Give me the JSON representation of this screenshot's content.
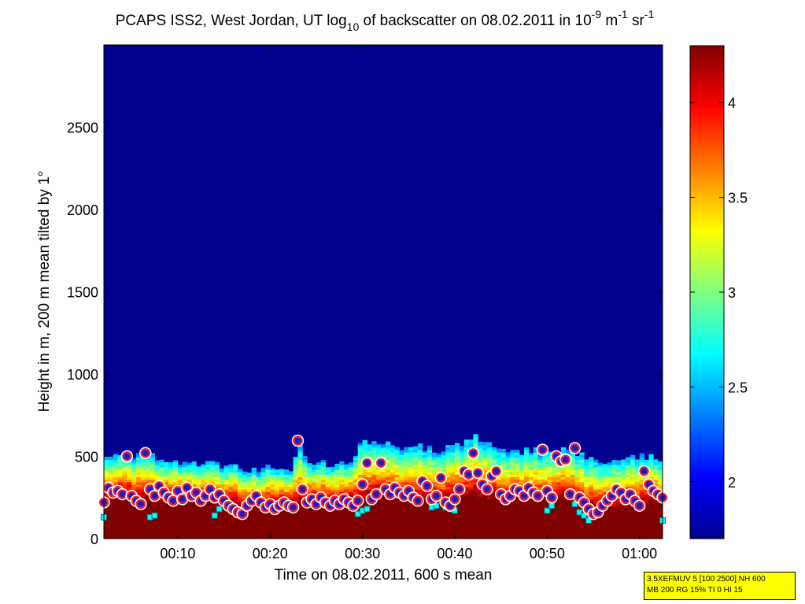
{
  "chart_data": {
    "type": "heatmap",
    "title": {
      "prefix": "PCAPS ISS2, West Jordan, UT log",
      "log_base": "10",
      "middle": " of backscatter on 08.02.2011 in 10",
      "exp1": "-9",
      "unit1": " m",
      "exp2": "-1",
      "unit2": " sr",
      "exp3": "-1"
    },
    "xlabel": "Time on 08.02.2011, 600 s mean",
    "ylabel": "Height in m, 200 m mean tilted by 1°",
    "x_range_minutes": [
      2,
      62.5
    ],
    "x_ticks": [
      {
        "value": 10,
        "label": "00:10"
      },
      {
        "value": 20,
        "label": "00:20"
      },
      {
        "value": 30,
        "label": "00:30"
      },
      {
        "value": 40,
        "label": "00:40"
      },
      {
        "value": 50,
        "label": "00:50"
      },
      {
        "value": 60,
        "label": "01:00"
      }
    ],
    "ylim": [
      0,
      3000
    ],
    "y_ticks": [
      0,
      500,
      1000,
      1500,
      2000,
      2500
    ],
    "colorbar": {
      "range": [
        1.7,
        4.3
      ],
      "ticks": [
        2,
        2.5,
        3,
        3.5,
        4
      ],
      "tick_labels": [
        "2",
        "2.5",
        "3",
        "3.5",
        "4"
      ],
      "colormap": "jet"
    },
    "background_value": 1.7,
    "surface_value": 4.3,
    "aerosol_layer_top_m": [
      [
        2,
        500
      ],
      [
        4,
        500
      ],
      [
        6,
        520
      ],
      [
        8,
        480
      ],
      [
        10,
        470
      ],
      [
        12,
        460
      ],
      [
        14,
        460
      ],
      [
        16,
        430
      ],
      [
        18,
        420
      ],
      [
        20,
        430
      ],
      [
        22,
        420
      ],
      [
        23,
        560
      ],
      [
        24,
        440
      ],
      [
        26,
        460
      ],
      [
        28,
        440
      ],
      [
        30,
        600
      ],
      [
        32,
        580
      ],
      [
        34,
        560
      ],
      [
        36,
        560
      ],
      [
        38,
        540
      ],
      [
        40,
        570
      ],
      [
        42,
        620
      ],
      [
        44,
        560
      ],
      [
        46,
        520
      ],
      [
        48,
        540
      ],
      [
        50,
        520
      ],
      [
        52,
        560
      ],
      [
        54,
        480
      ],
      [
        56,
        470
      ],
      [
        58,
        480
      ],
      [
        60,
        500
      ],
      [
        62.5,
        490
      ]
    ],
    "dense_layer_top_m": [
      [
        2,
        240
      ],
      [
        4,
        260
      ],
      [
        6,
        250
      ],
      [
        8,
        230
      ],
      [
        10,
        240
      ],
      [
        12,
        230
      ],
      [
        14,
        220
      ],
      [
        16,
        200
      ],
      [
        18,
        190
      ],
      [
        20,
        200
      ],
      [
        22,
        200
      ],
      [
        24,
        210
      ],
      [
        26,
        220
      ],
      [
        28,
        220
      ],
      [
        30,
        230
      ],
      [
        32,
        260
      ],
      [
        34,
        240
      ],
      [
        36,
        230
      ],
      [
        38,
        220
      ],
      [
        40,
        230
      ],
      [
        42,
        260
      ],
      [
        44,
        240
      ],
      [
        46,
        230
      ],
      [
        48,
        220
      ],
      [
        50,
        230
      ],
      [
        52,
        240
      ],
      [
        54,
        180
      ],
      [
        56,
        170
      ],
      [
        58,
        190
      ],
      [
        60,
        200
      ],
      [
        62.5,
        210
      ]
    ],
    "series": [
      {
        "marker": "circle-red-blue",
        "points": [
          [
            2.0,
            220
          ],
          [
            2.5,
            310
          ],
          [
            3.0,
            280
          ],
          [
            3.5,
            290
          ],
          [
            4.0,
            270
          ],
          [
            4.5,
            500
          ],
          [
            5.0,
            260
          ],
          [
            5.5,
            230
          ],
          [
            6.0,
            210
          ],
          [
            6.5,
            520
          ],
          [
            7.0,
            300
          ],
          [
            7.5,
            260
          ],
          [
            8.0,
            320
          ],
          [
            8.5,
            280
          ],
          [
            9.0,
            250
          ],
          [
            9.5,
            230
          ],
          [
            10.0,
            290
          ],
          [
            10.5,
            240
          ],
          [
            11.0,
            310
          ],
          [
            11.5,
            260
          ],
          [
            12.0,
            280
          ],
          [
            12.5,
            230
          ],
          [
            13.0,
            260
          ],
          [
            13.5,
            300
          ],
          [
            14.0,
            250
          ],
          [
            14.5,
            270
          ],
          [
            15.0,
            230
          ],
          [
            15.5,
            200
          ],
          [
            16.0,
            180
          ],
          [
            16.5,
            160
          ],
          [
            17.0,
            150
          ],
          [
            17.5,
            200
          ],
          [
            18.0,
            230
          ],
          [
            18.5,
            260
          ],
          [
            19.0,
            220
          ],
          [
            19.5,
            190
          ],
          [
            20.0,
            210
          ],
          [
            20.5,
            180
          ],
          [
            21.0,
            200
          ],
          [
            21.5,
            220
          ],
          [
            22.0,
            200
          ],
          [
            22.5,
            190
          ],
          [
            23.0,
            595
          ],
          [
            23.5,
            300
          ],
          [
            24.0,
            220
          ],
          [
            24.5,
            240
          ],
          [
            25.0,
            210
          ],
          [
            25.5,
            250
          ],
          [
            26.0,
            220
          ],
          [
            26.5,
            200
          ],
          [
            27.0,
            230
          ],
          [
            27.5,
            210
          ],
          [
            28.0,
            240
          ],
          [
            28.5,
            220
          ],
          [
            29.0,
            200
          ],
          [
            29.5,
            230
          ],
          [
            30.0,
            330
          ],
          [
            30.5,
            460
          ],
          [
            31.0,
            240
          ],
          [
            31.5,
            270
          ],
          [
            32.0,
            460
          ],
          [
            32.5,
            300
          ],
          [
            33.0,
            270
          ],
          [
            33.5,
            310
          ],
          [
            34.0,
            280
          ],
          [
            34.5,
            260
          ],
          [
            35.0,
            290
          ],
          [
            35.5,
            250
          ],
          [
            36.0,
            230
          ],
          [
            36.5,
            350
          ],
          [
            37.0,
            320
          ],
          [
            37.5,
            240
          ],
          [
            38.0,
            260
          ],
          [
            38.5,
            370
          ],
          [
            39.0,
            220
          ],
          [
            39.5,
            200
          ],
          [
            40.0,
            240
          ],
          [
            40.5,
            300
          ],
          [
            41.0,
            410
          ],
          [
            41.5,
            390
          ],
          [
            42.0,
            520
          ],
          [
            42.5,
            400
          ],
          [
            43.0,
            330
          ],
          [
            43.5,
            300
          ],
          [
            44.0,
            380
          ],
          [
            44.5,
            410
          ],
          [
            45.0,
            270
          ],
          [
            45.5,
            240
          ],
          [
            46.0,
            260
          ],
          [
            46.5,
            300
          ],
          [
            47.0,
            290
          ],
          [
            47.5,
            260
          ],
          [
            48.0,
            310
          ],
          [
            48.5,
            280
          ],
          [
            49.0,
            260
          ],
          [
            49.5,
            540
          ],
          [
            50.0,
            290
          ],
          [
            50.5,
            250
          ],
          [
            51.0,
            500
          ],
          [
            51.5,
            470
          ],
          [
            52.0,
            480
          ],
          [
            52.5,
            270
          ],
          [
            53.0,
            550
          ],
          [
            53.5,
            250
          ],
          [
            54.0,
            220
          ],
          [
            54.5,
            180
          ],
          [
            55.0,
            150
          ],
          [
            55.5,
            160
          ],
          [
            56.0,
            200
          ],
          [
            56.5,
            230
          ],
          [
            57.0,
            260
          ],
          [
            57.5,
            300
          ],
          [
            58.0,
            280
          ],
          [
            58.5,
            240
          ],
          [
            59.0,
            270
          ],
          [
            59.5,
            230
          ],
          [
            60.0,
            200
          ],
          [
            60.5,
            410
          ],
          [
            61.0,
            330
          ],
          [
            61.5,
            290
          ],
          [
            62.0,
            270
          ],
          [
            62.5,
            250
          ]
        ]
      },
      {
        "marker": "square-cyan",
        "points": [
          [
            2,
            130
          ],
          [
            7,
            130
          ],
          [
            7.5,
            140
          ],
          [
            14,
            140
          ],
          [
            14.5,
            180
          ],
          [
            16,
            170
          ],
          [
            16.5,
            150
          ],
          [
            29.5,
            150
          ],
          [
            30,
            170
          ],
          [
            30.5,
            180
          ],
          [
            37.5,
            190
          ],
          [
            38,
            200
          ],
          [
            39,
            190
          ],
          [
            39.5,
            180
          ],
          [
            40,
            170
          ],
          [
            50,
            170
          ],
          [
            50.5,
            200
          ],
          [
            53,
            210
          ],
          [
            53.5,
            160
          ],
          [
            54,
            140
          ],
          [
            54.5,
            110
          ],
          [
            62.5,
            110
          ]
        ]
      }
    ]
  },
  "info_box": {
    "line1": "3.5XEFMUV 5 [100 2500] NH 600",
    "line2": "MB 200 RG 15% TI 0 HI 15"
  },
  "colors": {
    "marker_circle_fill": "#1a1ad0",
    "marker_circle_stroke": "#ff2020",
    "marker_square_fill": "#00ffff",
    "marker_square_stroke": "#007a7a",
    "info_box_bg": "#ffff00"
  }
}
